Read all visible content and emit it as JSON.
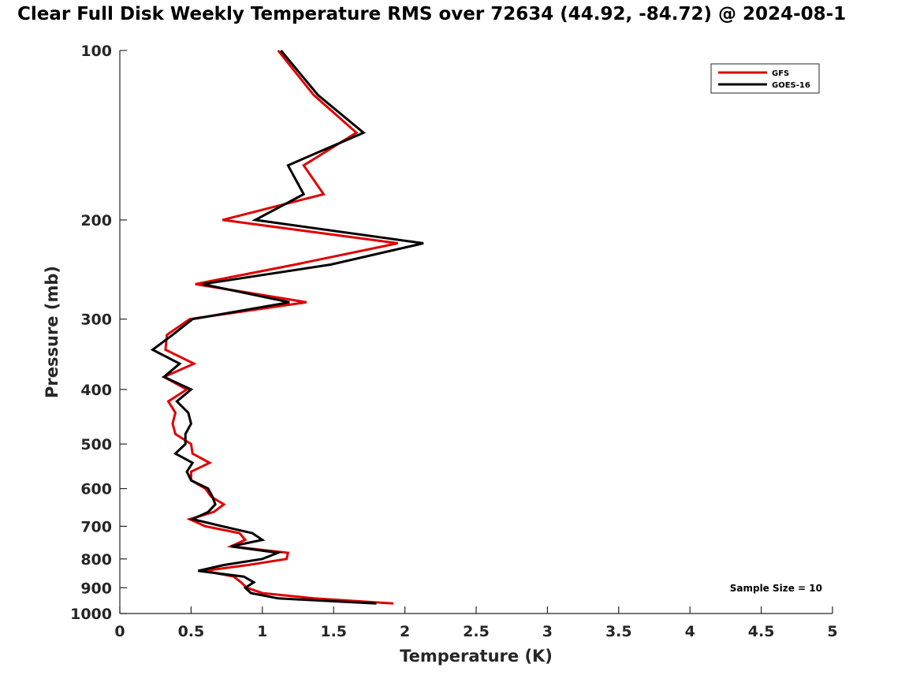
{
  "chart_data": {
    "type": "line",
    "title": "Clear Full Disk Weekly Temperature RMS over 72634 (44.92, -84.72) @ 2024-08-1",
    "xlabel": "Temperature (K)",
    "ylabel": "Pressure (mb)",
    "xlim": [
      0,
      5
    ],
    "ylim": [
      100,
      1000
    ],
    "yscale": "log",
    "y_reversed": true,
    "grid": false,
    "legend_position": "top-right",
    "xticks": [
      "0",
      "0.5",
      "1",
      "1.5",
      "2",
      "2.5",
      "3",
      "3.5",
      "4",
      "4.5",
      "5"
    ],
    "xtick_values": [
      0,
      0.5,
      1,
      1.5,
      2,
      2.5,
      3,
      3.5,
      4,
      4.5,
      5
    ],
    "yticks": [
      "100",
      "200",
      "300",
      "400",
      "500",
      "600",
      "700",
      "800",
      "900",
      "1000"
    ],
    "ytick_values": [
      100,
      200,
      300,
      400,
      500,
      600,
      700,
      800,
      900,
      1000
    ],
    "pressure": [
      100,
      120,
      140,
      160,
      180,
      200,
      220,
      240,
      260,
      280,
      300,
      320,
      340,
      360,
      380,
      400,
      420,
      440,
      460,
      480,
      500,
      520,
      540,
      560,
      580,
      600,
      620,
      640,
      660,
      680,
      700,
      720,
      740,
      760,
      780,
      800,
      820,
      840,
      860,
      880,
      900,
      920,
      940,
      960
    ],
    "series": [
      {
        "name": "GFS",
        "color": "#e00000",
        "values": [
          1.11,
          1.36,
          1.66,
          1.29,
          1.43,
          0.72,
          1.95,
          1.23,
          0.53,
          1.31,
          0.49,
          0.33,
          0.32,
          0.52,
          0.31,
          0.47,
          0.34,
          0.39,
          0.37,
          0.39,
          0.5,
          0.51,
          0.63,
          0.5,
          0.5,
          0.6,
          0.64,
          0.73,
          0.66,
          0.49,
          0.6,
          0.84,
          0.88,
          0.78,
          1.18,
          1.17,
          0.9,
          0.59,
          0.8,
          0.85,
          0.89,
          1.0,
          1.36,
          1.92
        ]
      },
      {
        "name": "GOES-16",
        "color": "#000000",
        "values": [
          1.13,
          1.39,
          1.71,
          1.18,
          1.29,
          0.95,
          2.13,
          1.48,
          0.58,
          1.19,
          0.51,
          0.37,
          0.23,
          0.42,
          0.31,
          0.5,
          0.4,
          0.48,
          0.5,
          0.46,
          0.46,
          0.39,
          0.51,
          0.47,
          0.5,
          0.62,
          0.65,
          0.67,
          0.62,
          0.51,
          0.72,
          0.93,
          1.0,
          0.78,
          1.11,
          1.0,
          0.73,
          0.55,
          0.87,
          0.94,
          0.88,
          0.92,
          1.11,
          1.8
        ]
      }
    ],
    "annotations": [
      "Sample Size = 10"
    ]
  }
}
